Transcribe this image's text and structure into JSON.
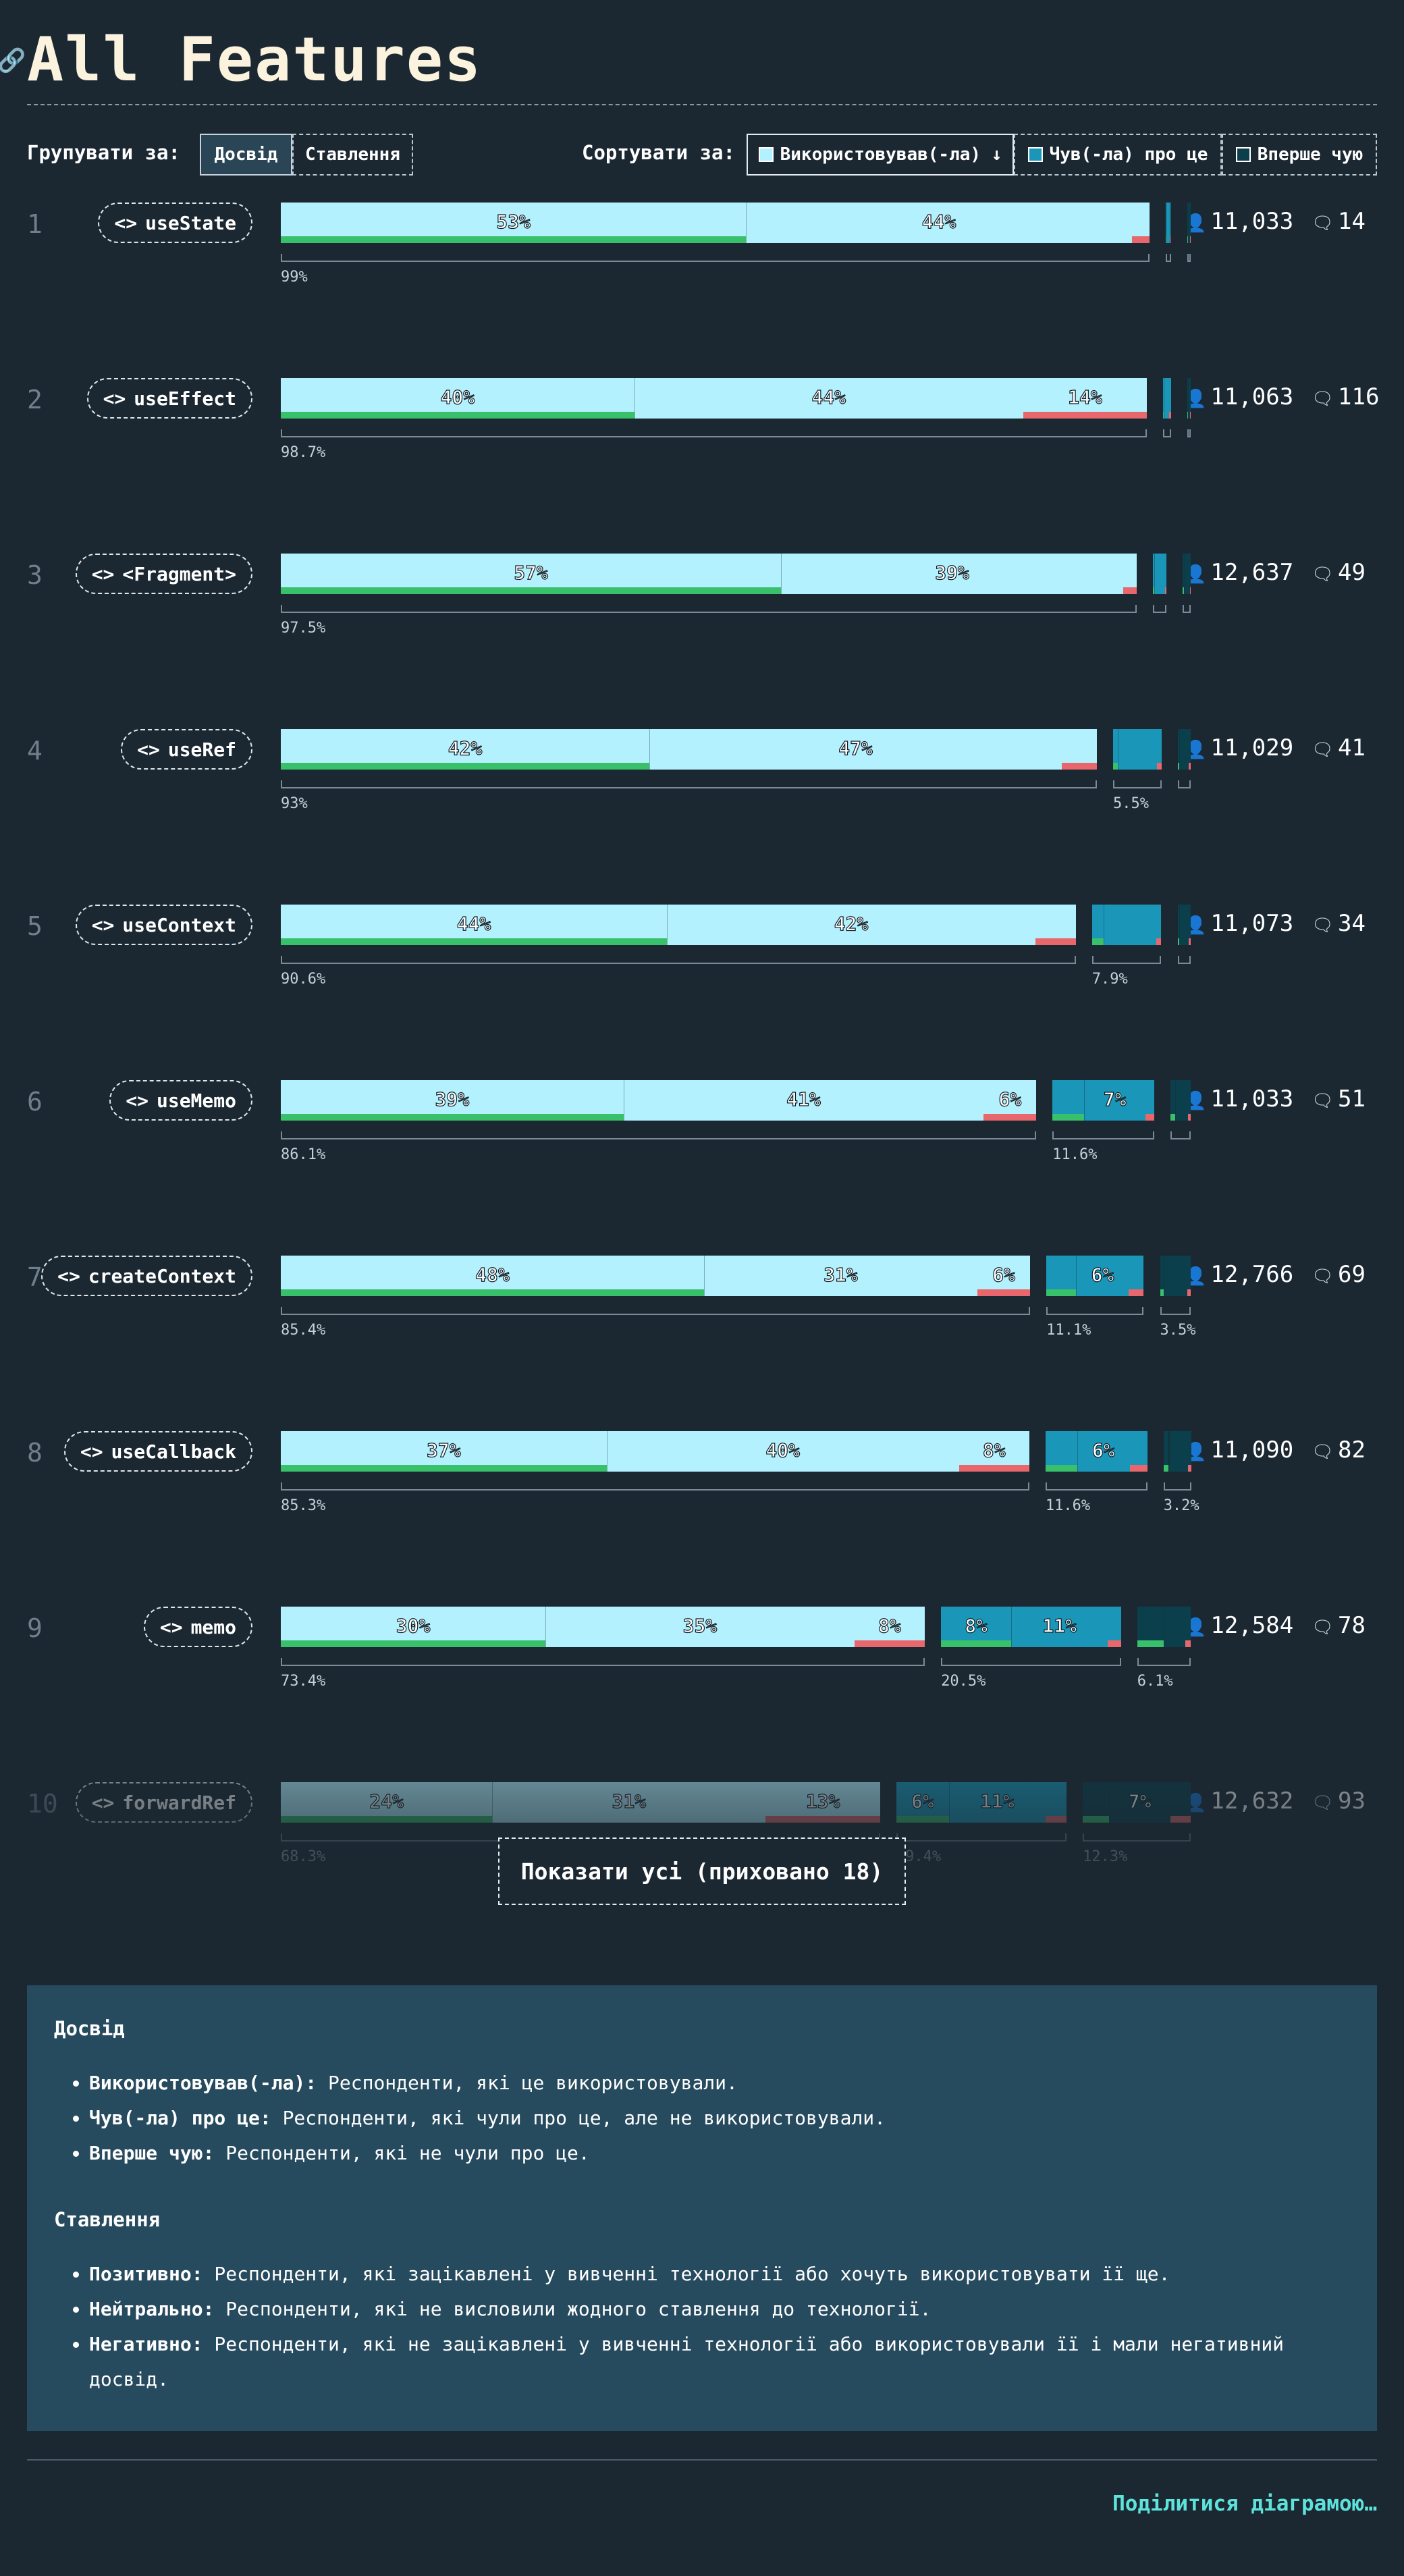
{
  "page": {
    "title": "All Features",
    "link_icon": "link-icon",
    "group_label": "Групувати за:",
    "group_options": [
      "Досвід",
      "Ставлення"
    ],
    "sort_label": "Сортувати за:",
    "sort_options": [
      "Використовував(-ла) ↓",
      "Чув(-ла) про це",
      "Вперше чую"
    ],
    "show_all": "Показати усі (приховано 18)",
    "share": "Поділитися діаграмою…"
  },
  "colors": {
    "used": "#b3f1ff",
    "heard": "#1a96b8",
    "never": "#0b3f4b",
    "positive": "#38c06a",
    "negative": "#e8676c",
    "background": "#1b2832"
  },
  "chart_data": {
    "type": "bar",
    "stacking": "horizontal stacked groups",
    "categories": [
      "useState",
      "useEffect",
      "<Fragment>",
      "useRef",
      "useContext",
      "useMemo",
      "createContext",
      "useCallback",
      "memo",
      "forwardRef"
    ],
    "ranks": [
      "1",
      "2",
      "3",
      "4",
      "5",
      "6",
      "7",
      "8",
      "9",
      "10"
    ],
    "respondents": [
      "11,033",
      "11,063",
      "12,637",
      "11,029",
      "11,073",
      "11,033",
      "12,766",
      "11,090",
      "12,584",
      "12,632"
    ],
    "comments": [
      "14",
      "116",
      "49",
      "41",
      "34",
      "51",
      "69",
      "82",
      "78",
      "93"
    ],
    "series": [
      {
        "name": "Використовував(-ла)",
        "values": [
          99,
          98.7,
          97.5,
          93,
          90.6,
          86.1,
          85.4,
          85.3,
          73.4,
          68.3
        ]
      },
      {
        "name": "Чув(-ла) про це",
        "values": [
          0.6,
          0.9,
          1.6,
          5.5,
          7.9,
          11.6,
          11.1,
          11.6,
          20.5,
          19.4
        ]
      },
      {
        "name": "Вперше чую",
        "values": [
          0.4,
          0.4,
          0.9,
          1.5,
          1.5,
          2.3,
          3.5,
          3.2,
          6.1,
          12.3
        ]
      }
    ],
    "total_labels": [
      [
        "99%",
        "",
        ""
      ],
      [
        "98.7%",
        "",
        ""
      ],
      [
        "97.5%",
        "",
        ""
      ],
      [
        "93%",
        "5.5%",
        ""
      ],
      [
        "90.6%",
        "7.9%",
        ""
      ],
      [
        "86.1%",
        "11.6%",
        ""
      ],
      [
        "85.4%",
        "11.1%",
        "3.5%"
      ],
      [
        "85.3%",
        "11.6%",
        "3.2%"
      ],
      [
        "73.4%",
        "20.5%",
        "6.1%"
      ],
      [
        "68.3%",
        "19.4%",
        "12.3%"
      ]
    ],
    "breakdown": [
      {
        "used": [
          53,
          44,
          2
        ],
        "heard": [
          0.1,
          0.4,
          0.1
        ],
        "never": [
          0.1,
          0.2,
          0.1
        ]
      },
      {
        "used": [
          40,
          44,
          14
        ],
        "heard": [
          0.1,
          0.6,
          0.2
        ],
        "never": [
          0.1,
          0.2,
          0.1
        ]
      },
      {
        "used": [
          57,
          39,
          1.5
        ],
        "heard": [
          0.2,
          1.2,
          0.2
        ],
        "never": [
          0.1,
          0.7,
          0.1
        ]
      },
      {
        "used": [
          42,
          47,
          4
        ],
        "heard": [
          0.5,
          4.5,
          0.5
        ],
        "never": [
          0.2,
          1.1,
          0.2
        ]
      },
      {
        "used": [
          44,
          42,
          4.6
        ],
        "heard": [
          1.3,
          6,
          0.6
        ],
        "never": [
          0.2,
          1.1,
          0.2
        ]
      },
      {
        "used": [
          39,
          41,
          6
        ],
        "heard": [
          3.6,
          7,
          1
        ],
        "never": [
          0.5,
          1.5,
          0.3
        ]
      },
      {
        "used": [
          48,
          31,
          6
        ],
        "heard": [
          3.4,
          6,
          1.7
        ],
        "never": [
          0.4,
          2.7,
          0.4
        ]
      },
      {
        "used": [
          37,
          40,
          8
        ],
        "heard": [
          3.6,
          6,
          2
        ],
        "never": [
          0.6,
          2.2,
          0.4
        ]
      },
      {
        "used": [
          30,
          35,
          8
        ],
        "heard": [
          8,
          11,
          1.5
        ],
        "never": [
          3,
          2.5,
          0.6
        ]
      },
      {
        "used": [
          24,
          31,
          13
        ],
        "heard": [
          6,
          11,
          2.4
        ],
        "never": [
          3,
          7,
          2.3
        ]
      }
    ],
    "bar_labels": [
      [
        "53%",
        "44%",
        "",
        "",
        "",
        "",
        "",
        "",
        ""
      ],
      [
        "40%",
        "44%",
        "14%",
        "",
        "",
        "",
        "",
        "",
        ""
      ],
      [
        "57%",
        "39%",
        "",
        "",
        "",
        "",
        "",
        "",
        ""
      ],
      [
        "42%",
        "47%",
        "",
        "",
        "",
        "",
        "",
        "",
        ""
      ],
      [
        "44%",
        "42%",
        "",
        "",
        "",
        "",
        "",
        "",
        ""
      ],
      [
        "39%",
        "41%",
        "6%",
        "",
        "7%",
        "",
        "",
        "",
        ""
      ],
      [
        "48%",
        "31%",
        "6%",
        "",
        "6%",
        "",
        "",
        "",
        ""
      ],
      [
        "37%",
        "40%",
        "8%",
        "",
        "6%",
        "",
        "",
        "",
        ""
      ],
      [
        "30%",
        "35%",
        "8%",
        "8%",
        "11%",
        "",
        "",
        "",
        ""
      ],
      [
        "24%",
        "31%",
        "13%",
        "6%",
        "11%",
        "",
        "",
        "7%",
        ""
      ]
    ],
    "xlim": [
      0,
      100
    ]
  },
  "legend": {
    "experience_title": "Досвід",
    "experience_items": [
      {
        "term": "Використовував(-ла):",
        "desc": " Респонденти, які це використовували."
      },
      {
        "term": "Чув(-ла) про це:",
        "desc": " Респонденти, які чули про це, але не використовували."
      },
      {
        "term": "Вперше чую:",
        "desc": " Респонденти, які не чули про це."
      }
    ],
    "sentiment_title": "Ставлення",
    "sentiment_items": [
      {
        "term": "Позитивно:",
        "desc": " Респонденти, які зацікавлені у вивченні технології або хочуть використовувати її ще."
      },
      {
        "term": "Нейтрально:",
        "desc": " Респонденти, які не висловили жодного ставлення до технології."
      },
      {
        "term": "Негативно:",
        "desc": " Респонденти, які не зацікавлені у вивченні технології або використовували її і мали негативний досвід."
      }
    ]
  }
}
